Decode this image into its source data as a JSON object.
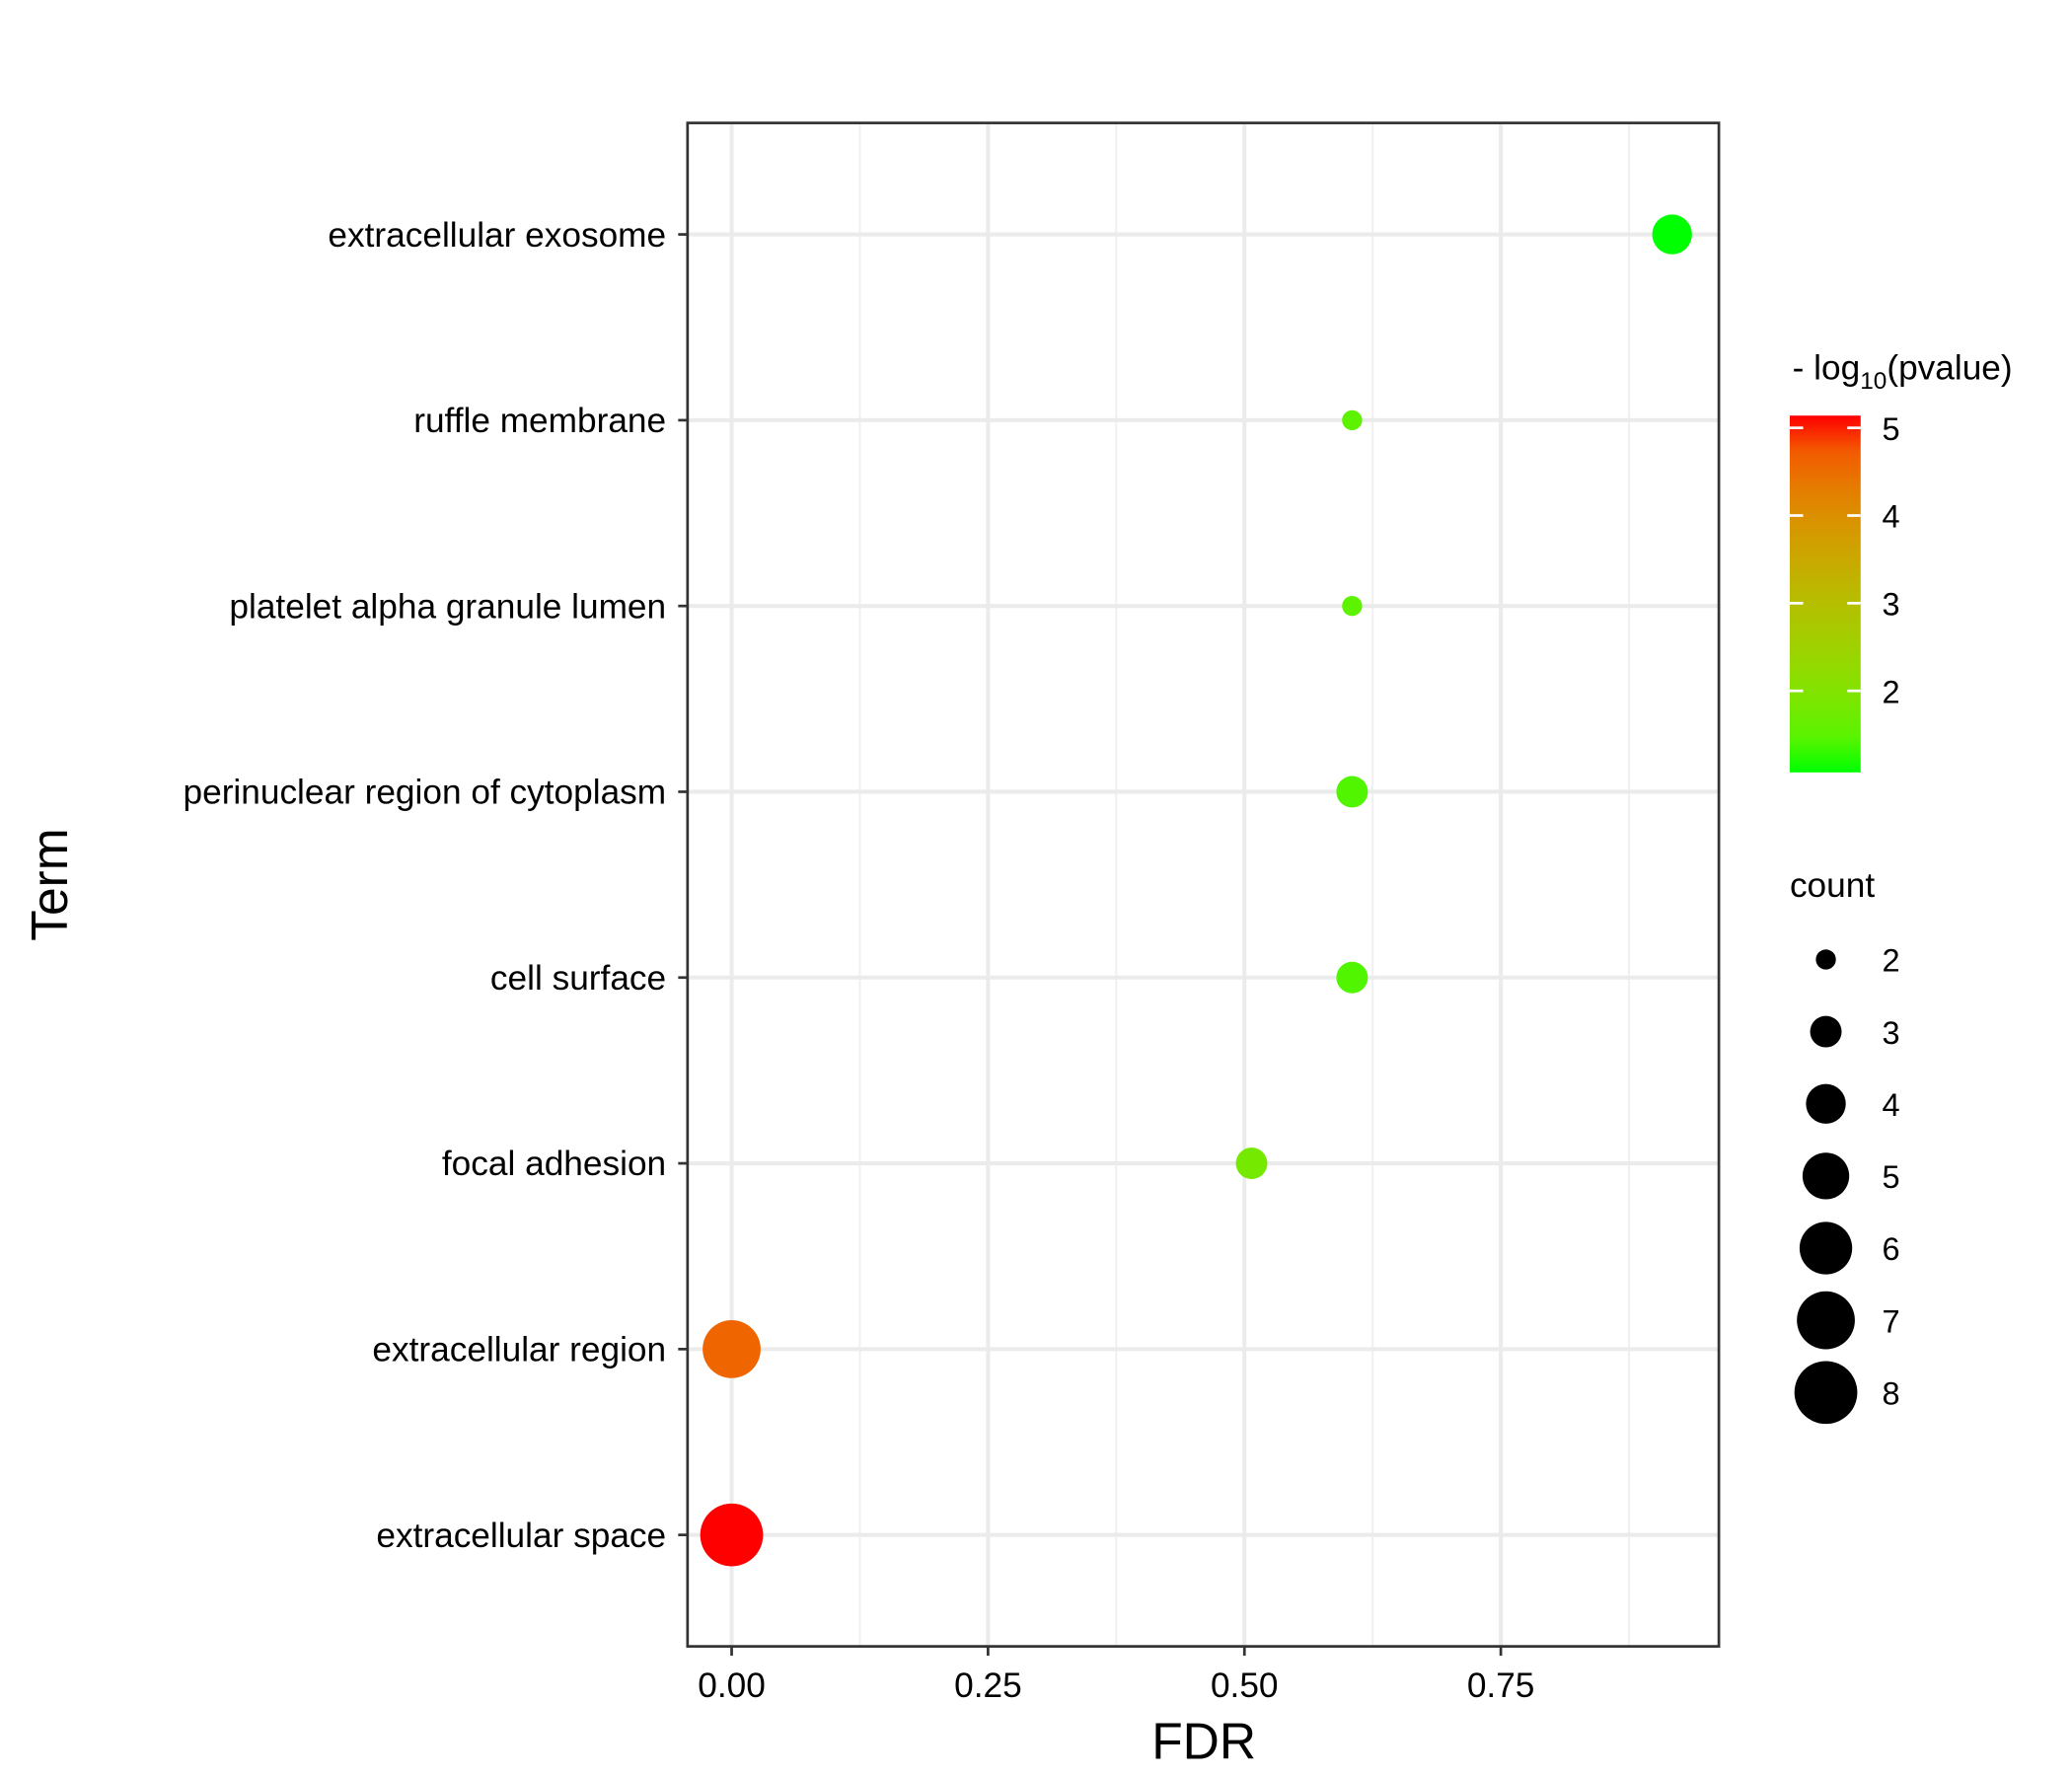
{
  "chart_data": {
    "type": "scatter",
    "x_label": "FDR",
    "y_label": "Term",
    "categories": [
      "extracellular exosome",
      "ruffle membrane",
      "platelet alpha granule lumen",
      "perinuclear region of cytoplasm",
      "cell surface",
      "focal adhesion",
      "extracellular region",
      "extracellular space"
    ],
    "values": [
      0.917,
      0.605,
      0.605,
      0.605,
      0.605,
      0.507,
      0.0,
      0.0
    ],
    "count": [
      4,
      2,
      2,
      3,
      3,
      3,
      7,
      8
    ],
    "log_pvalue": [
      1.07,
      1.5,
      1.5,
      1.4,
      1.4,
      1.8,
      4.6,
      5.14
    ],
    "xlim": [
      -0.043,
      0.9626
    ],
    "xticks": [
      {
        "value": 0,
        "label": "0.00"
      },
      {
        "value": 0.25,
        "label": "0.25"
      },
      {
        "value": 0.5,
        "label": "0.50"
      },
      {
        "value": 0.75,
        "label": "0.75"
      }
    ],
    "grid": true,
    "color_low": "#00ff00",
    "color_high": "#ff0000",
    "color_legend": {
      "title": {
        "prefix": "- log",
        "subscript": "10",
        "suffix": "(pvalue)"
      },
      "ticks": [
        2,
        3,
        4,
        5
      ]
    },
    "size_legend": {
      "title": "count",
      "values": [
        2,
        3,
        4,
        5,
        6,
        7,
        8
      ]
    }
  }
}
